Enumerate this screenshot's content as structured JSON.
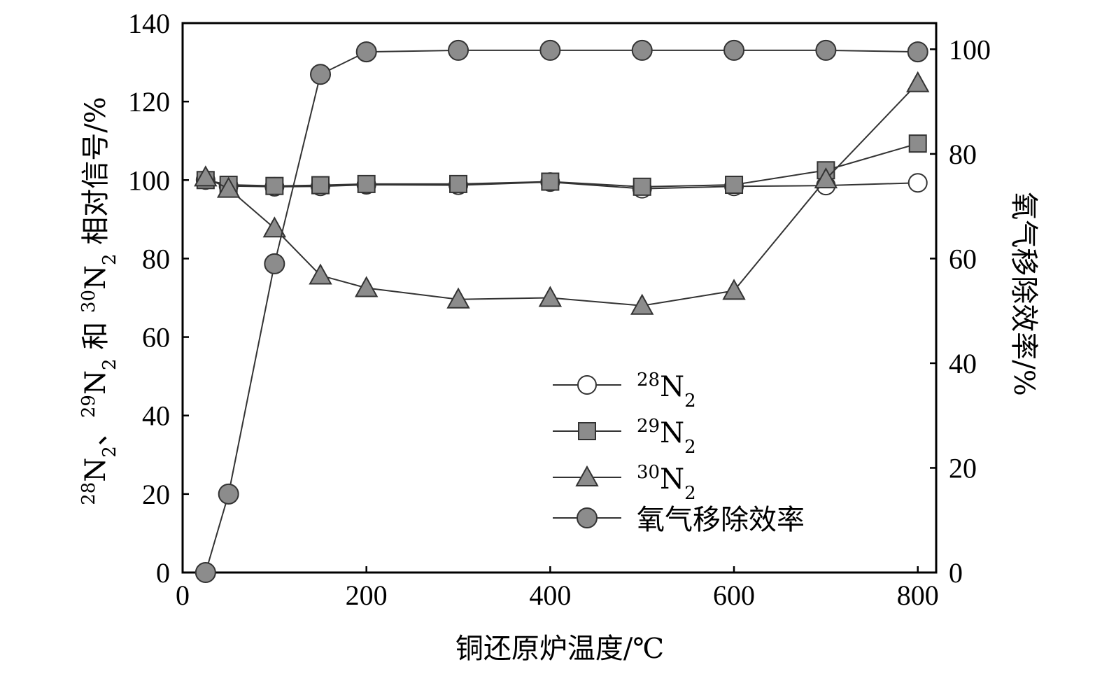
{
  "chart_data": {
    "type": "line",
    "title": "",
    "xlabel": "铜还原炉温度/℃",
    "ylabel_left": {
      "prefix_sup_1": "28",
      "text_1": "N",
      "sub_1": "2",
      "sep": "、",
      "prefix_sup_2": "29",
      "text_2": "N",
      "sub_2": "2",
      "mid": " 和 ",
      "prefix_sup_3": "30",
      "text_3": "N",
      "sub_3": "2",
      "suffix": " 相对信号/%"
    },
    "ylabel_right": "氧气移除效率/%",
    "xlim": [
      0,
      820
    ],
    "ylim_left": [
      0,
      140
    ],
    "ylim_right": [
      0,
      105
    ],
    "x_ticks": [
      0,
      200,
      400,
      600,
      800
    ],
    "y_ticks_left": [
      0,
      20,
      40,
      60,
      80,
      100,
      120,
      140
    ],
    "y_ticks_right": [
      0,
      20,
      40,
      60,
      80,
      100
    ],
    "grid": false,
    "legend_position": "lower-right",
    "series": [
      {
        "name": "28N2",
        "legend_sup": "28",
        "legend_main": "N",
        "legend_sub": "2",
        "marker": "circle-open",
        "axis": "left",
        "x": [
          25,
          50,
          100,
          150,
          200,
          300,
          400,
          500,
          600,
          700,
          800
        ],
        "y": [
          100,
          98.5,
          98.3,
          98.4,
          98.8,
          98.7,
          99.5,
          97.8,
          98.4,
          98.6,
          99.3
        ]
      },
      {
        "name": "29N2",
        "legend_sup": "29",
        "legend_main": "N",
        "legend_sub": "2",
        "marker": "square",
        "axis": "left",
        "x": [
          25,
          50,
          100,
          150,
          200,
          300,
          400,
          500,
          600,
          700,
          800
        ],
        "y": [
          100,
          98.8,
          98.5,
          98.7,
          99,
          99,
          99.6,
          98.3,
          98.8,
          102.5,
          109.3
        ]
      },
      {
        "name": "30N2",
        "legend_sup": "30",
        "legend_main": "N",
        "legend_sub": "2",
        "marker": "triangle",
        "axis": "left",
        "x": [
          25,
          50,
          100,
          150,
          200,
          300,
          400,
          500,
          600,
          700,
          800
        ],
        "y": [
          100.7,
          97.8,
          87.7,
          75.7,
          72.5,
          69.6,
          70,
          68,
          71.8,
          100.2,
          124.7
        ]
      },
      {
        "name": "氧气移除效率",
        "legend_sup": "",
        "legend_main": "氧气移除效率",
        "legend_sub": "",
        "marker": "circle-filled",
        "axis": "right",
        "x": [
          25,
          50,
          100,
          150,
          200,
          300,
          400,
          500,
          600,
          700,
          800
        ],
        "y": [
          0,
          15,
          59,
          95.2,
          99.5,
          99.8,
          99.8,
          99.8,
          99.8,
          99.8,
          99.5
        ]
      }
    ]
  },
  "colors": {
    "axis": "#000000",
    "line": "#333333",
    "marker_fill": "#8c8c8c",
    "open_fill": "#ffffff"
  }
}
